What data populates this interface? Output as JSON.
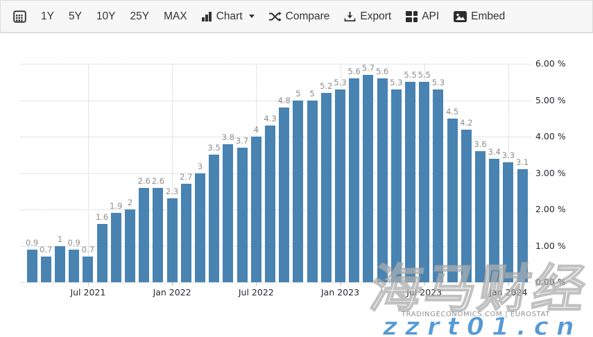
{
  "toolbar": {
    "ranges": [
      "1Y",
      "5Y",
      "10Y",
      "25Y",
      "MAX"
    ],
    "chart_label": "Chart",
    "compare_label": "Compare",
    "export_label": "Export",
    "api_label": "API",
    "embed_label": "Embed"
  },
  "chart_data": {
    "type": "bar",
    "values": [
      0.9,
      0.7,
      1,
      0.9,
      0.7,
      1.6,
      1.9,
      2,
      2.6,
      2.6,
      2.3,
      2.7,
      3,
      3.5,
      3.8,
      3.7,
      4,
      4.3,
      4.8,
      5,
      5,
      5.2,
      5.3,
      5.6,
      5.7,
      5.6,
      5.3,
      5.5,
      5.5,
      5.3,
      4.5,
      4.2,
      3.6,
      3.4,
      3.3,
      3.1
    ],
    "x_ticks": [
      {
        "bar_index": 4,
        "label": "Jul 2021"
      },
      {
        "bar_index": 10,
        "label": "Jan 2022"
      },
      {
        "bar_index": 16,
        "label": "Jul 2022"
      },
      {
        "bar_index": 22,
        "label": "Jan 2023"
      },
      {
        "bar_index": 28,
        "label": "Jul 2023"
      },
      {
        "bar_index": 34,
        "label": "Jan 2024"
      }
    ],
    "y_ticks": [
      {
        "value": 6,
        "label": "6.00 %"
      },
      {
        "value": 5,
        "label": "5.00 %"
      },
      {
        "value": 4,
        "label": "4.00 %"
      },
      {
        "value": 3,
        "label": "3.00 %"
      },
      {
        "value": 2,
        "label": "2.00 %"
      },
      {
        "value": 1,
        "label": "1.00 %"
      },
      {
        "value": 0,
        "label": "0.00 %"
      }
    ],
    "ylim": [
      0,
      6
    ],
    "grid": "dotted",
    "legend": "none",
    "bar_color": "#4883b2",
    "value_label_color": "#8d8d8d"
  },
  "footer": {
    "attribution": "TRADINGECONOMICS.COM | EUROSTAT",
    "watermark_cjk": "海马财经",
    "watermark_url": "zzrt01.cn"
  }
}
